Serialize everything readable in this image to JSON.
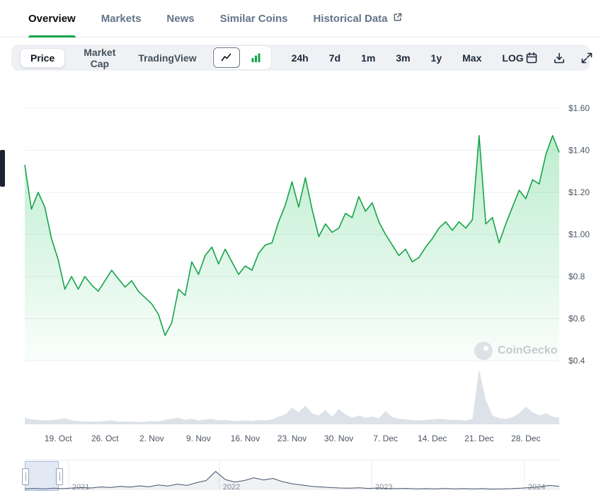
{
  "tabs": {
    "items": [
      {
        "label": "Overview",
        "active": true
      },
      {
        "label": "Markets",
        "active": false
      },
      {
        "label": "News",
        "active": false
      },
      {
        "label": "Similar Coins",
        "active": false
      },
      {
        "label": "Historical Data",
        "active": false,
        "has_external_icon": true
      }
    ]
  },
  "toolbar": {
    "price_label": "Price",
    "market_cap_label": "Market Cap",
    "tradingview_label": "TradingView",
    "ranges": [
      "24h",
      "7d",
      "1m",
      "3m",
      "1y",
      "Max"
    ],
    "log_label": "LOG",
    "chart_type_icons": [
      "line-chart-icon",
      "bar-chart-icon"
    ],
    "right_icons": [
      "calendar-icon",
      "download-icon",
      "fullscreen-icon"
    ]
  },
  "watermark": {
    "label": "CoinGecko"
  },
  "colors": {
    "accent_green": "#15a34a",
    "line_green": "#16a34a",
    "toolbar_bg": "#eff1f4",
    "volume_grey": "#dde2e8",
    "navigator_line": "#46536a",
    "selection_blue": "rgba(81,119,185,0.16)"
  },
  "chart_data": [
    {
      "type": "line",
      "name": "price",
      "title": "Price",
      "color": "#16a34a",
      "ylim": [
        0.4,
        1.6
      ],
      "y_ticks": [
        {
          "label": "$1.60",
          "value": 1.6
        },
        {
          "label": "$1.40",
          "value": 1.4
        },
        {
          "label": "$1.20",
          "value": 1.2
        },
        {
          "label": "$1.00",
          "value": 1.0
        },
        {
          "label": "$0.8",
          "value": 0.8
        },
        {
          "label": "$0.6",
          "value": 0.6
        },
        {
          "label": "$0.4",
          "value": 0.4
        }
      ],
      "x_ticks": [
        {
          "label": "19. Oct",
          "i": 5
        },
        {
          "label": "26. Oct",
          "i": 12
        },
        {
          "label": "2. Nov",
          "i": 19
        },
        {
          "label": "9. Nov",
          "i": 26
        },
        {
          "label": "16. Nov",
          "i": 33
        },
        {
          "label": "23. Nov",
          "i": 40
        },
        {
          "label": "30. Nov",
          "i": 47
        },
        {
          "label": "7. Dec",
          "i": 54
        },
        {
          "label": "14. Dec",
          "i": 61
        },
        {
          "label": "21. Dec",
          "i": 68
        },
        {
          "label": "28. Dec",
          "i": 75
        }
      ],
      "values": [
        1.33,
        1.12,
        1.2,
        1.13,
        0.98,
        0.88,
        0.74,
        0.8,
        0.74,
        0.8,
        0.76,
        0.73,
        0.78,
        0.83,
        0.79,
        0.75,
        0.78,
        0.73,
        0.7,
        0.67,
        0.62,
        0.52,
        0.58,
        0.74,
        0.71,
        0.87,
        0.81,
        0.9,
        0.94,
        0.86,
        0.93,
        0.87,
        0.81,
        0.85,
        0.83,
        0.91,
        0.95,
        0.96,
        1.06,
        1.14,
        1.25,
        1.13,
        1.27,
        1.12,
        0.99,
        1.05,
        1.01,
        1.03,
        1.1,
        1.08,
        1.18,
        1.11,
        1.15,
        1.06,
        1.0,
        0.95,
        0.9,
        0.93,
        0.87,
        0.89,
        0.94,
        0.98,
        1.03,
        1.06,
        1.02,
        1.06,
        1.03,
        1.07,
        1.47,
        1.05,
        1.08,
        0.96,
        1.05,
        1.13,
        1.21,
        1.17,
        1.26,
        1.24,
        1.38,
        1.47,
        1.39
      ]
    },
    {
      "type": "area",
      "name": "volume",
      "color": "#dde2e8",
      "range": [
        0,
        100
      ],
      "values": [
        12,
        9,
        8,
        7,
        8,
        9,
        11,
        7,
        6,
        5,
        5,
        5,
        6,
        7,
        5,
        5,
        5,
        4,
        5,
        6,
        5,
        8,
        10,
        12,
        8,
        10,
        7,
        9,
        10,
        7,
        8,
        6,
        6,
        7,
        6,
        8,
        7,
        9,
        14,
        18,
        30,
        22,
        34,
        20,
        16,
        26,
        14,
        28,
        18,
        12,
        16,
        12,
        14,
        11,
        24,
        13,
        10,
        9,
        8,
        7,
        8,
        9,
        10,
        9,
        8,
        8,
        7,
        10,
        100,
        45,
        16,
        11,
        10,
        13,
        20,
        32,
        22,
        16,
        20,
        14,
        12
      ]
    },
    {
      "type": "area",
      "name": "navigator",
      "color": "#46536a",
      "fill": "rgba(100,116,139,0.10)",
      "x_ticks": [
        {
          "label": "2021",
          "f": 0.082
        },
        {
          "label": "2022",
          "f": 0.364
        },
        {
          "label": "2023",
          "f": 0.649
        },
        {
          "label": "2024",
          "f": 0.935
        }
      ],
      "selection": [
        0.0,
        0.064
      ],
      "values": [
        0.06,
        0.08,
        0.06,
        0.09,
        0.07,
        0.1,
        0.12,
        0.1,
        0.15,
        0.12,
        0.18,
        0.14,
        0.2,
        0.16,
        0.24,
        0.19,
        0.28,
        0.22,
        0.35,
        0.45,
        0.88,
        0.5,
        0.38,
        0.45,
        0.58,
        0.48,
        0.55,
        0.4,
        0.3,
        0.24,
        0.18,
        0.15,
        0.12,
        0.1,
        0.09,
        0.11,
        0.08,
        0.1,
        0.08,
        0.07,
        0.08,
        0.06,
        0.07,
        0.06,
        0.08,
        0.06,
        0.07,
        0.06,
        0.07,
        0.05,
        0.06,
        0.07,
        0.09,
        0.12,
        0.16,
        0.22,
        0.18
      ]
    }
  ]
}
